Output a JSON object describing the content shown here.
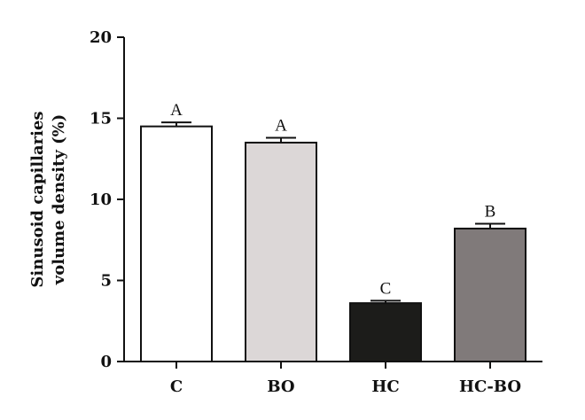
{
  "chart_data": {
    "type": "bar",
    "categories": [
      "C",
      "BO",
      "HC",
      "HC-BO"
    ],
    "values": [
      14.5,
      13.5,
      3.6,
      8.2
    ],
    "errors": [
      0.25,
      0.3,
      0.15,
      0.3
    ],
    "significance_letters": [
      "A",
      "A",
      "C",
      "B"
    ],
    "bar_colors": [
      "#ffffff",
      "#dcd7d7",
      "#1c1c1a",
      "#807a7a"
    ],
    "title": "",
    "xlabel": "",
    "ylabel_lines": [
      "Sinusoid capillaries",
      "volume density (%)"
    ],
    "ylim": [
      0,
      20
    ],
    "yticks": [
      0,
      5,
      10,
      15,
      20
    ],
    "grid": false,
    "legend": "none"
  }
}
